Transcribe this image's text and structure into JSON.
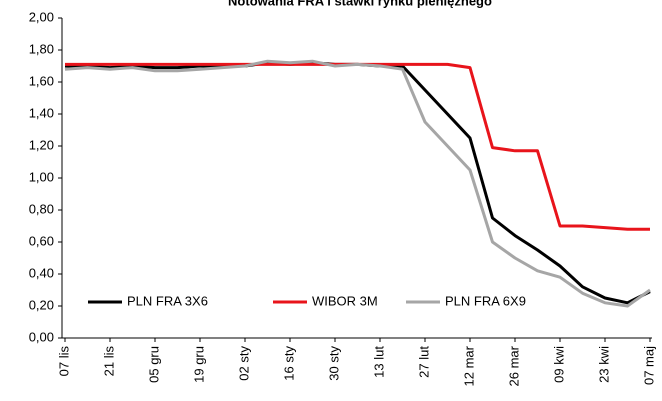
{
  "chart_data": {
    "type": "line",
    "title": "Notowania FRA i stawki rynku pieniężnego",
    "categories": [
      "07 lis",
      null,
      "21 lis",
      null,
      "05 gru",
      null,
      "19 gru",
      null,
      "02 sty",
      null,
      "16 sty",
      null,
      "30 sty",
      null,
      "13 lut",
      null,
      "27 lut",
      null,
      "12 mar",
      null,
      "26 mar",
      null,
      "09 kwi",
      null,
      "23 kwi",
      null,
      "07 maj"
    ],
    "series": [
      {
        "name": "PLN FRA 3X6",
        "color": "#000000",
        "values": [
          1.7,
          1.7,
          1.69,
          1.7,
          1.69,
          1.69,
          1.7,
          1.7,
          1.7,
          1.72,
          1.71,
          1.72,
          1.71,
          1.71,
          1.7,
          1.7,
          1.55,
          1.4,
          1.25,
          0.75,
          0.64,
          0.55,
          0.45,
          0.32,
          0.25,
          0.22,
          0.29
        ]
      },
      {
        "name": "WIBOR 3M",
        "color": "#e8141b",
        "values": [
          1.71,
          1.71,
          1.71,
          1.71,
          1.71,
          1.71,
          1.71,
          1.71,
          1.71,
          1.71,
          1.71,
          1.71,
          1.71,
          1.71,
          1.71,
          1.71,
          1.71,
          1.71,
          1.69,
          1.19,
          1.17,
          1.17,
          0.7,
          0.7,
          0.69,
          0.68,
          0.68
        ]
      },
      {
        "name": "PLN FRA 6X9",
        "color": "#a6a6a6",
        "values": [
          1.68,
          1.69,
          1.68,
          1.69,
          1.67,
          1.67,
          1.68,
          1.69,
          1.7,
          1.73,
          1.72,
          1.73,
          1.7,
          1.71,
          1.7,
          1.68,
          1.35,
          1.2,
          1.05,
          0.6,
          0.5,
          0.42,
          0.38,
          0.28,
          0.22,
          0.2,
          0.3
        ]
      }
    ],
    "ylim": [
      0,
      2
    ],
    "yticks": [
      {
        "value": 0,
        "label": "0,00"
      },
      {
        "value": 0.2,
        "label": "0,20"
      },
      {
        "value": 0.4,
        "label": "0,40"
      },
      {
        "value": 0.6,
        "label": "0,60"
      },
      {
        "value": 0.8,
        "label": "0,80"
      },
      {
        "value": 1,
        "label": "1,00"
      },
      {
        "value": 1.2,
        "label": "1,20"
      },
      {
        "value": 1.4,
        "label": "1,40"
      },
      {
        "value": 1.6,
        "label": "1,60"
      },
      {
        "value": 1.8,
        "label": "1,80"
      },
      {
        "value": 2,
        "label": "2,00"
      }
    ],
    "legend": "bottom"
  }
}
